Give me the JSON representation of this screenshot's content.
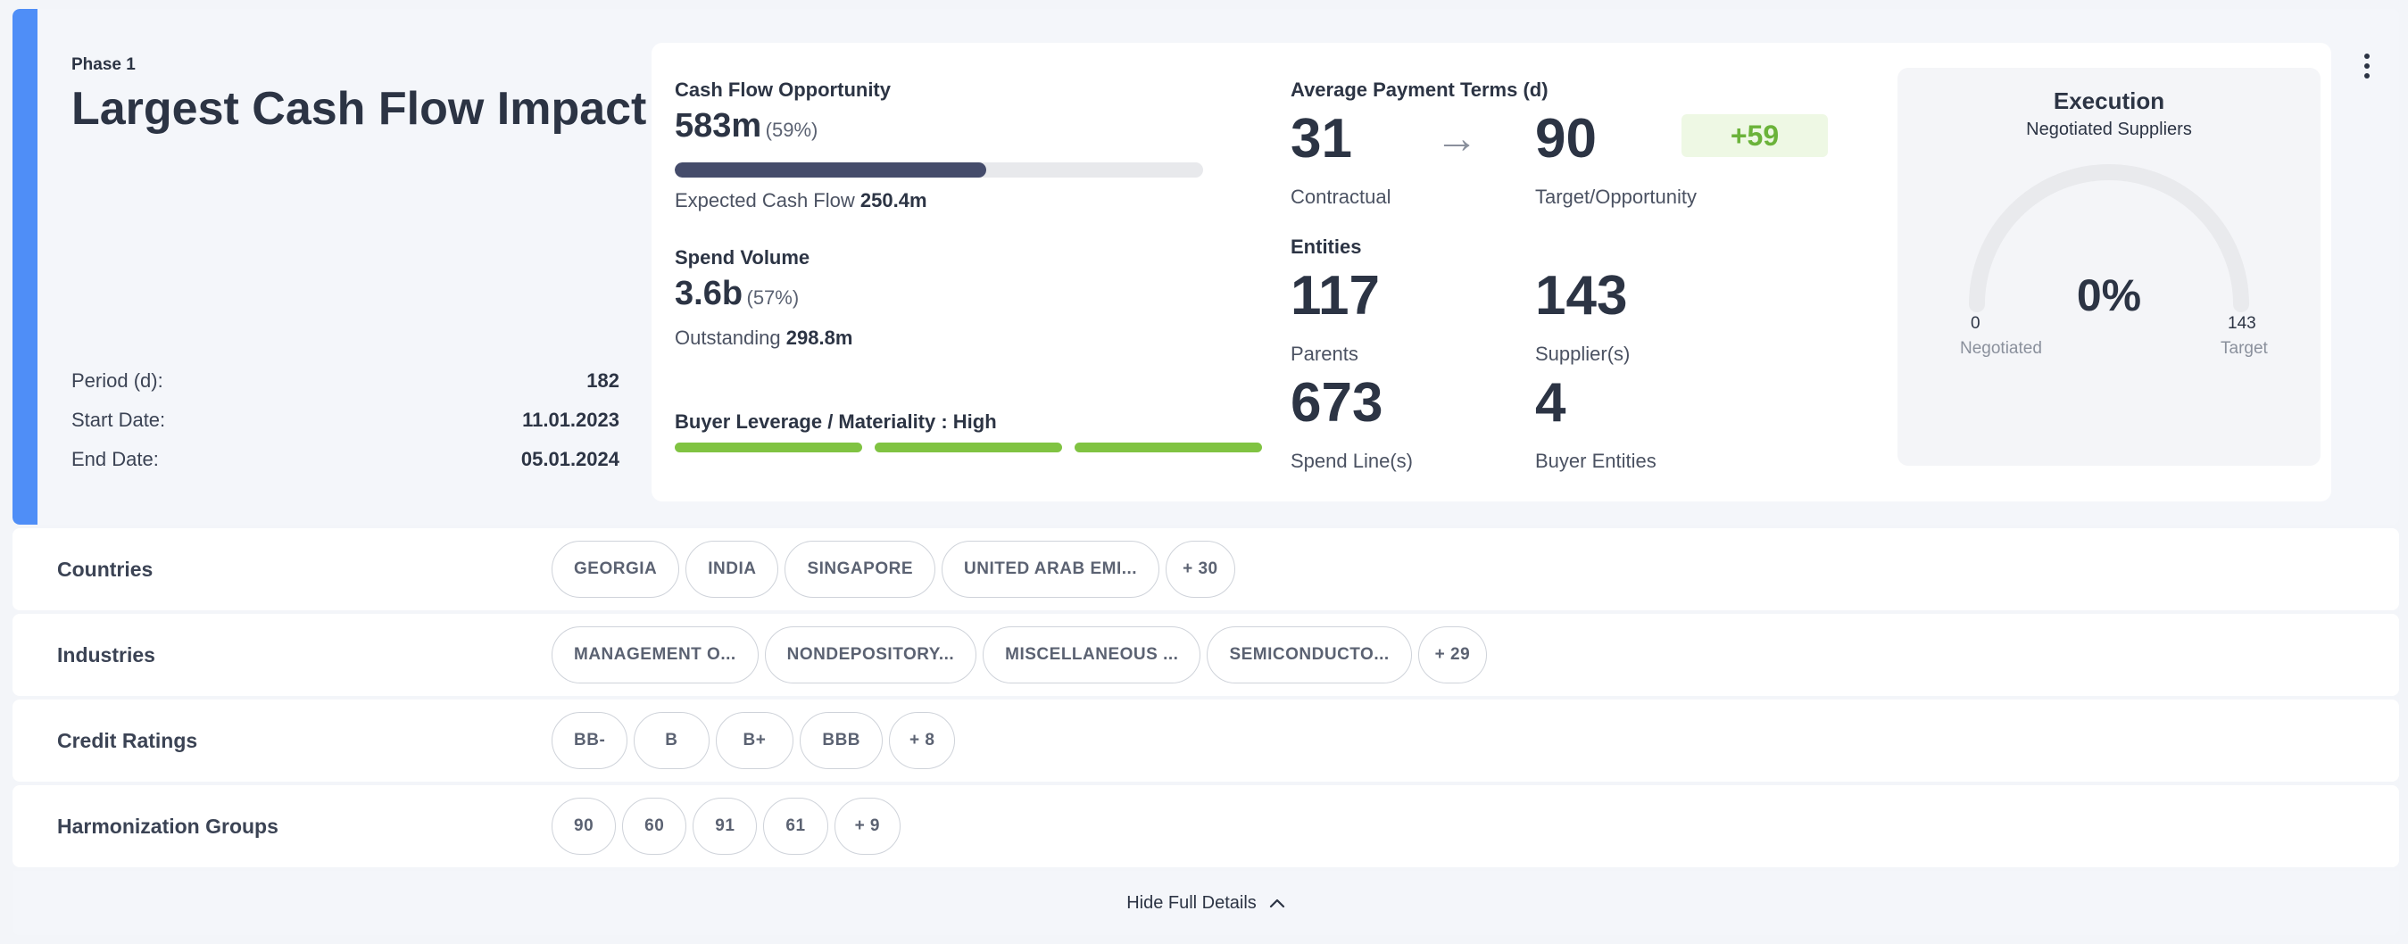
{
  "phase": {
    "label": "Phase 1",
    "title": "Largest Cash Flow Impact",
    "meta": [
      {
        "label": "Period (d):",
        "value": "182"
      },
      {
        "label": "Start Date:",
        "value": "11.01.2023"
      },
      {
        "label": "End Date:",
        "value": "05.01.2024"
      }
    ]
  },
  "cash_flow": {
    "label": "Cash Flow Opportunity",
    "value": "583m",
    "percent": "(59%)",
    "progress_fraction": 0.59,
    "expected_label": "Expected Cash Flow",
    "expected_value": "250.4m"
  },
  "spend": {
    "label": "Spend Volume",
    "value": "3.6b",
    "percent": "(57%)",
    "outstanding_label": "Outstanding",
    "outstanding_value": "298.8m"
  },
  "leverage": {
    "label": "Buyer Leverage / Materiality : High",
    "level": 3,
    "max": 3,
    "color": "#80c342"
  },
  "payment_terms": {
    "label": "Average Payment Terms (d)",
    "contractual_value": "31",
    "contractual_label": "Contractual",
    "target_value": "90",
    "target_label": "Target/Opportunity",
    "delta": "+59",
    "arrow": "→"
  },
  "entities": {
    "label": "Entities",
    "parents_value": "117",
    "parents_label": "Parents",
    "suppliers_value": "143",
    "suppliers_label": "Supplier(s)",
    "spend_lines_value": "673",
    "spend_lines_label": "Spend Line(s)",
    "buyer_entities_value": "4",
    "buyer_entities_label": "Buyer Entities"
  },
  "execution": {
    "title": "Execution",
    "subtitle": "Negotiated Suppliers",
    "value": "0%",
    "min_value": "0",
    "min_label": "Negotiated",
    "max_value": "143",
    "max_label": "Target",
    "fraction": 0
  },
  "details": {
    "countries": {
      "label": "Countries",
      "chips": [
        "GEORGIA",
        "INDIA",
        "SINGAPORE",
        "UNITED ARAB EMI...",
        "+ 30"
      ]
    },
    "industries": {
      "label": "Industries",
      "chips": [
        "MANAGEMENT O...",
        "NONDEPOSITORY...",
        "MISCELLANEOUS ...",
        "SEMICONDUCTO...",
        "+ 29"
      ]
    },
    "credit_ratings": {
      "label": "Credit Ratings",
      "chips": [
        "BB-",
        "B",
        "B+",
        "BBB",
        "+ 8"
      ]
    },
    "harmonization": {
      "label": "Harmonization Groups",
      "chips": [
        "90",
        "60",
        "91",
        "61",
        "+ 9"
      ]
    }
  },
  "toggle": {
    "label": "Hide Full Details",
    "icon": "chevron-up-icon"
  },
  "colors": {
    "accent": "#4f8ef7",
    "progress": "#454c6b",
    "positive": "#6bb33a"
  }
}
